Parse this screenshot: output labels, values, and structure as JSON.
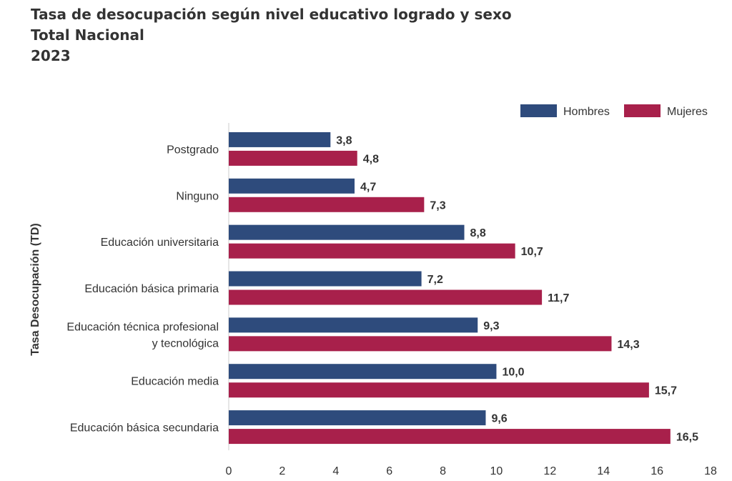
{
  "title": {
    "line1": "Tasa de desocupación según nivel educativo logrado y sexo",
    "line2": "Total Nacional",
    "line3": "2023"
  },
  "chart_data": {
    "type": "bar",
    "orientation": "horizontal",
    "categories": [
      "Postgrado",
      "Ninguno",
      "Educación universitaria",
      "Educación básica primaria",
      "Educación técnica profesional\ny tecnológica",
      "Educación media",
      "Educación básica secundaria"
    ],
    "series": [
      {
        "name": "Hombres",
        "color": "#2E4B7C",
        "values": [
          3.8,
          4.7,
          8.8,
          7.2,
          9.3,
          10.0,
          9.6
        ],
        "labels": [
          "3,8",
          "4,7",
          "8,8",
          "7,2",
          "9,3",
          "10,0",
          "9,6"
        ]
      },
      {
        "name": "Mujeres",
        "color": "#A8204B",
        "values": [
          4.8,
          7.3,
          10.7,
          11.7,
          14.3,
          15.7,
          16.5
        ],
        "labels": [
          "4,8",
          "7,3",
          "10,7",
          "11,7",
          "14,3",
          "15,7",
          "16,5"
        ]
      }
    ],
    "ylabel": "Tasa Desocupación (TD)",
    "xlabel": "",
    "xlim": [
      0,
      18
    ],
    "xticks": [
      0,
      2,
      4,
      6,
      8,
      10,
      12,
      14,
      16,
      18
    ],
    "grid": false,
    "legend": "top-right"
  }
}
